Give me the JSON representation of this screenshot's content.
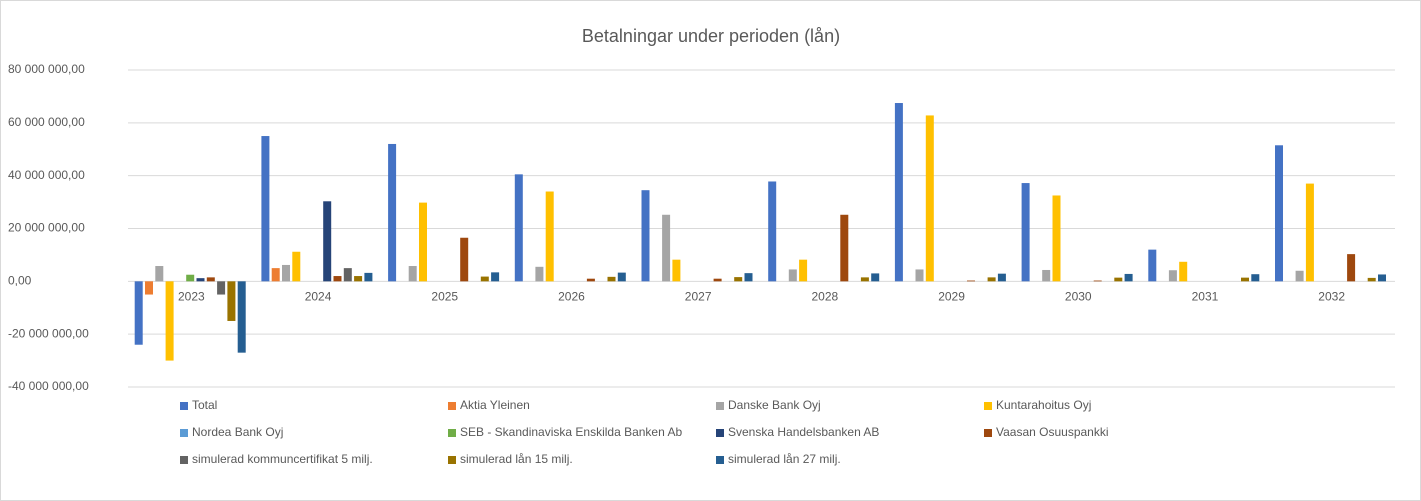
{
  "chart_data": {
    "type": "bar",
    "title": "Betalningar under perioden (lån)",
    "categories": [
      "2023",
      "2024",
      "2025",
      "2026",
      "2027",
      "2028",
      "2029",
      "2030",
      "2031",
      "2032"
    ],
    "ylim": [
      -40000000,
      80000000
    ],
    "yticks": [
      {
        "value": -40000000,
        "label": "-40 000 000,00"
      },
      {
        "value": -20000000,
        "label": "-20 000 000,00"
      },
      {
        "value": 0,
        "label": "0,00"
      },
      {
        "value": 20000000,
        "label": "20 000 000,00"
      },
      {
        "value": 40000000,
        "label": "40 000 000,00"
      },
      {
        "value": 60000000,
        "label": "60 000 000,00"
      },
      {
        "value": 80000000,
        "label": "80 000 000,00"
      }
    ],
    "grid": true,
    "legend": "bottom",
    "series": [
      {
        "name": "Total",
        "color": "#4472c4",
        "values": [
          -24000000,
          55000000,
          52000000,
          40500000,
          34500000,
          37800000,
          67500000,
          37200000,
          12000000,
          51500000
        ]
      },
      {
        "name": "Aktia Yleinen",
        "color": "#ed7d31",
        "values": [
          -5000000,
          5000000,
          0,
          0,
          0,
          0,
          0,
          0,
          0,
          0
        ]
      },
      {
        "name": "Danske Bank Oyj",
        "color": "#a5a5a5",
        "values": [
          5800000,
          6200000,
          5800000,
          5500000,
          25200000,
          4500000,
          4500000,
          4300000,
          4200000,
          4000000
        ]
      },
      {
        "name": "Kuntarahoitus Oyj",
        "color": "#ffc000",
        "values": [
          -30000000,
          11200000,
          29800000,
          34000000,
          8200000,
          8200000,
          62800000,
          32500000,
          7400000,
          37000000
        ]
      },
      {
        "name": "Nordea Bank Oyj",
        "color": "#5b9bd5",
        "values": [
          0,
          0,
          0,
          0,
          0,
          0,
          0,
          0,
          0,
          0
        ]
      },
      {
        "name": "SEB - Skandinaviska Enskilda Banken Ab",
        "color": "#70ad47",
        "values": [
          2500000,
          0,
          0,
          0,
          0,
          0,
          0,
          0,
          0,
          0
        ]
      },
      {
        "name": "Svenska Handelsbanken AB",
        "color": "#264478",
        "values": [
          1200000,
          30300000,
          0,
          0,
          0,
          0,
          0,
          0,
          0,
          0
        ]
      },
      {
        "name": "Vaasan Osuuspankki",
        "color": "#9e480e",
        "values": [
          1500000,
          2000000,
          16500000,
          1000000,
          1000000,
          25200000,
          300000,
          300000,
          0,
          10300000
        ]
      },
      {
        "name": "simulerad kommuncertifikat 5 milj.",
        "color": "#636363",
        "values": [
          -5000000,
          5000000,
          0,
          0,
          0,
          0,
          0,
          0,
          0,
          0
        ]
      },
      {
        "name": "simulerad lån 15 milj.",
        "color": "#997300",
        "values": [
          -15000000,
          2000000,
          1800000,
          1700000,
          1600000,
          1500000,
          1500000,
          1400000,
          1400000,
          1300000
        ]
      },
      {
        "name": "simulerad lån 27 milj.",
        "color": "#255e91",
        "values": [
          -27000000,
          3200000,
          3400000,
          3300000,
          3100000,
          3000000,
          2900000,
          2800000,
          2700000,
          2600000
        ]
      }
    ]
  }
}
